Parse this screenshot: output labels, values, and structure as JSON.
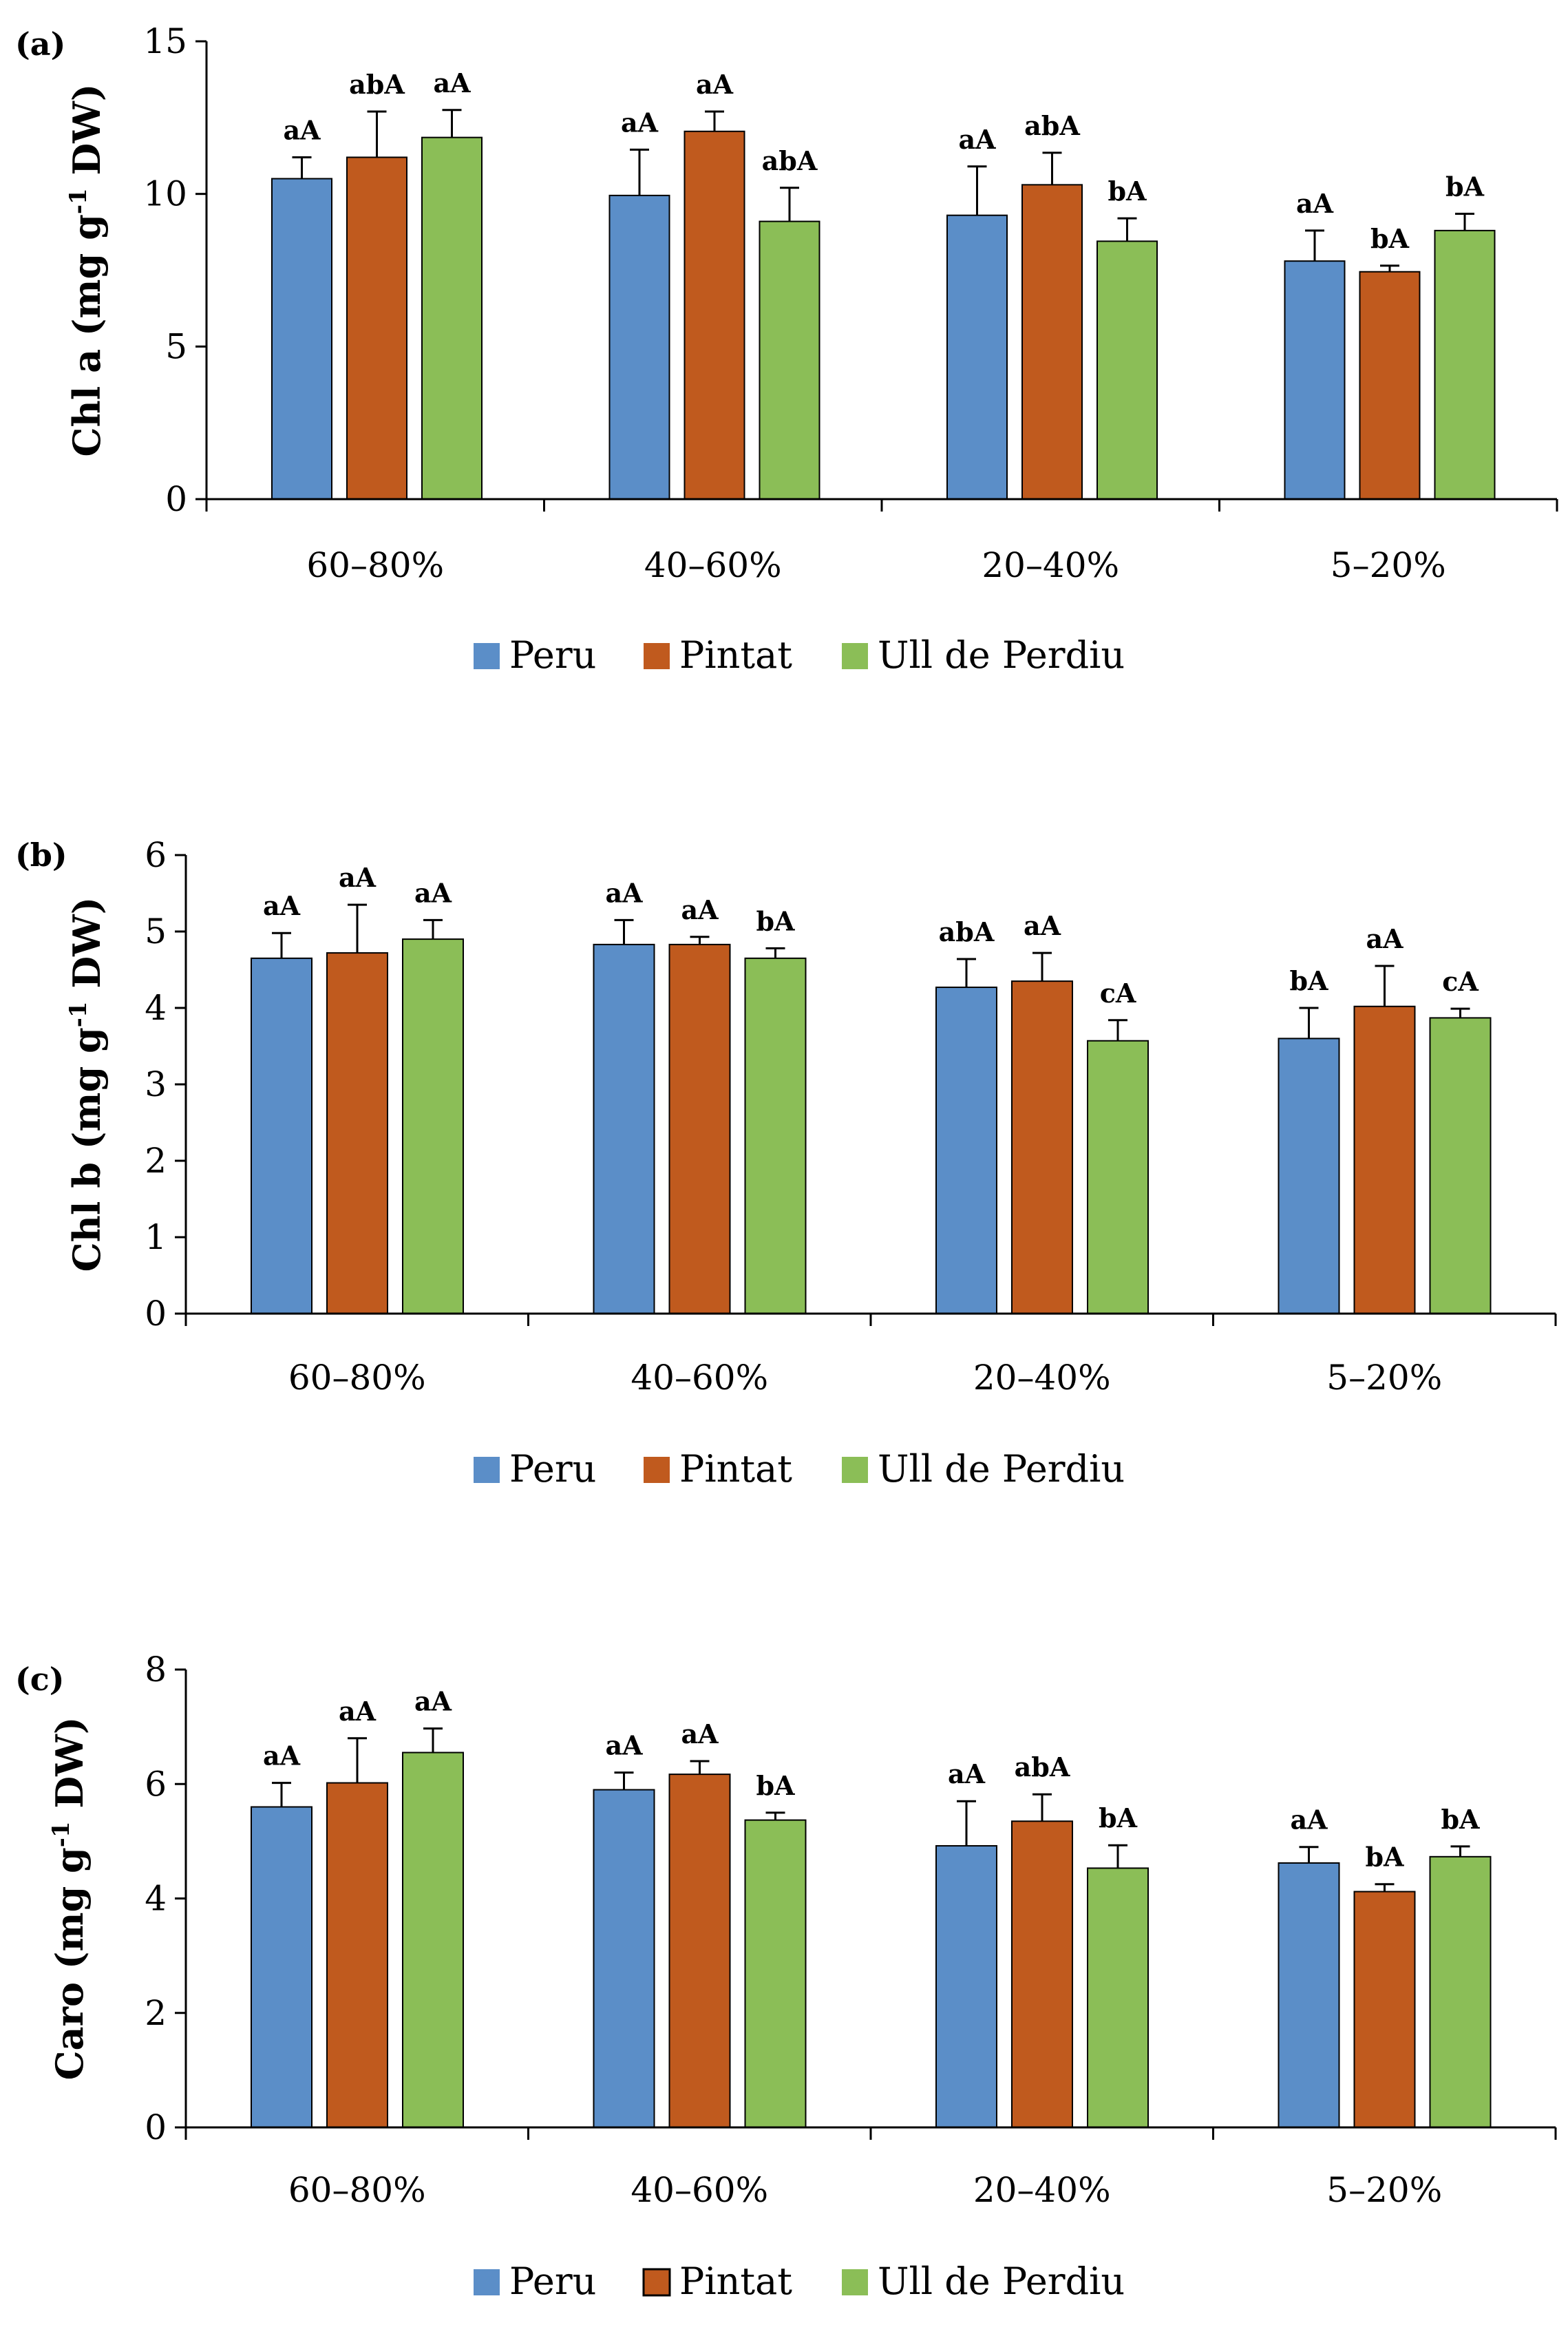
{
  "colors": {
    "Peru": "#5b8ec8",
    "Pintat": "#c05a1e",
    "Ull de Perdiu": "#8bbe57",
    "axis": "#000000",
    "error": "#000000"
  },
  "chart_data": [
    {
      "type": "bar",
      "panel_label": "(a)",
      "ylabel_main": "Chl a (mg g",
      "ylabel_sup": "-1",
      "ylabel_end": " DW)",
      "ylim": [
        0,
        15
      ],
      "yticks": [
        "0",
        "5",
        "10",
        "15"
      ],
      "grid": false,
      "legend_position": "bottom",
      "categories": [
        "60–80%",
        "40–60%",
        "20–40%",
        "5–20%"
      ],
      "series": [
        {
          "name": "Peru",
          "values": [
            10.5,
            9.95,
            9.3,
            7.8
          ],
          "errors": [
            0.7,
            1.5,
            1.6,
            1.0
          ],
          "labels": [
            "aA",
            "aA",
            "aA",
            "aA"
          ]
        },
        {
          "name": "Pintat",
          "values": [
            11.2,
            12.05,
            10.3,
            7.45
          ],
          "errors": [
            1.5,
            0.65,
            1.05,
            0.2
          ],
          "labels": [
            "abA",
            "aA",
            "abA",
            "bA"
          ]
        },
        {
          "name": "Ull de Perdiu",
          "values": [
            11.85,
            9.1,
            8.45,
            8.8
          ],
          "errors": [
            0.9,
            1.1,
            0.75,
            0.55
          ],
          "labels": [
            "aA",
            "abA",
            "bA",
            "bA"
          ]
        }
      ]
    },
    {
      "type": "bar",
      "panel_label": "(b)",
      "ylabel_main": "Chl b (mg g",
      "ylabel_sup": "-1",
      "ylabel_end": " DW)",
      "ylim": [
        0,
        6
      ],
      "yticks": [
        "0",
        "1",
        "2",
        "3",
        "4",
        "5",
        "6"
      ],
      "grid": false,
      "legend_position": "bottom",
      "categories": [
        "60–80%",
        "40–60%",
        "20–40%",
        "5–20%"
      ],
      "series": [
        {
          "name": "Peru",
          "values": [
            4.65,
            4.83,
            4.27,
            3.6
          ],
          "errors": [
            0.33,
            0.32,
            0.37,
            0.4
          ],
          "labels": [
            "aA",
            "aA",
            "abA",
            "bA"
          ]
        },
        {
          "name": "Pintat",
          "values": [
            4.72,
            4.83,
            4.35,
            4.02
          ],
          "errors": [
            0.63,
            0.1,
            0.37,
            0.53
          ],
          "labels": [
            "aA",
            "aA",
            "aA",
            "aA"
          ]
        },
        {
          "name": "Ull de Perdiu",
          "values": [
            4.9,
            4.65,
            3.57,
            3.87
          ],
          "errors": [
            0.25,
            0.13,
            0.27,
            0.12
          ],
          "labels": [
            "aA",
            "bA",
            "cA",
            "cA"
          ]
        }
      ]
    },
    {
      "type": "bar",
      "panel_label": "(c)",
      "ylabel_main": "Caro (mg g",
      "ylabel_sup": "-1",
      "ylabel_end": " DW)",
      "ylim": [
        0,
        8
      ],
      "yticks": [
        "0",
        "2",
        "4",
        "6",
        "8"
      ],
      "grid": false,
      "legend_position": "bottom",
      "categories": [
        "60–80%",
        "40–60%",
        "20–40%",
        "5–20%"
      ],
      "series": [
        {
          "name": "Peru",
          "values": [
            5.6,
            5.9,
            4.92,
            4.62
          ],
          "errors": [
            0.42,
            0.3,
            0.78,
            0.28
          ],
          "labels": [
            "aA",
            "aA",
            "aA",
            "aA"
          ]
        },
        {
          "name": "Pintat",
          "values": [
            6.02,
            6.17,
            5.35,
            4.12
          ],
          "errors": [
            0.78,
            0.23,
            0.47,
            0.13
          ],
          "labels": [
            "aA",
            "aA",
            "abA",
            "bA"
          ]
        },
        {
          "name": "Ull de Perdiu",
          "values": [
            6.55,
            5.37,
            4.53,
            4.73
          ],
          "errors": [
            0.42,
            0.13,
            0.4,
            0.18
          ],
          "labels": [
            "aA",
            "bA",
            "bA",
            "bA"
          ]
        }
      ]
    }
  ]
}
